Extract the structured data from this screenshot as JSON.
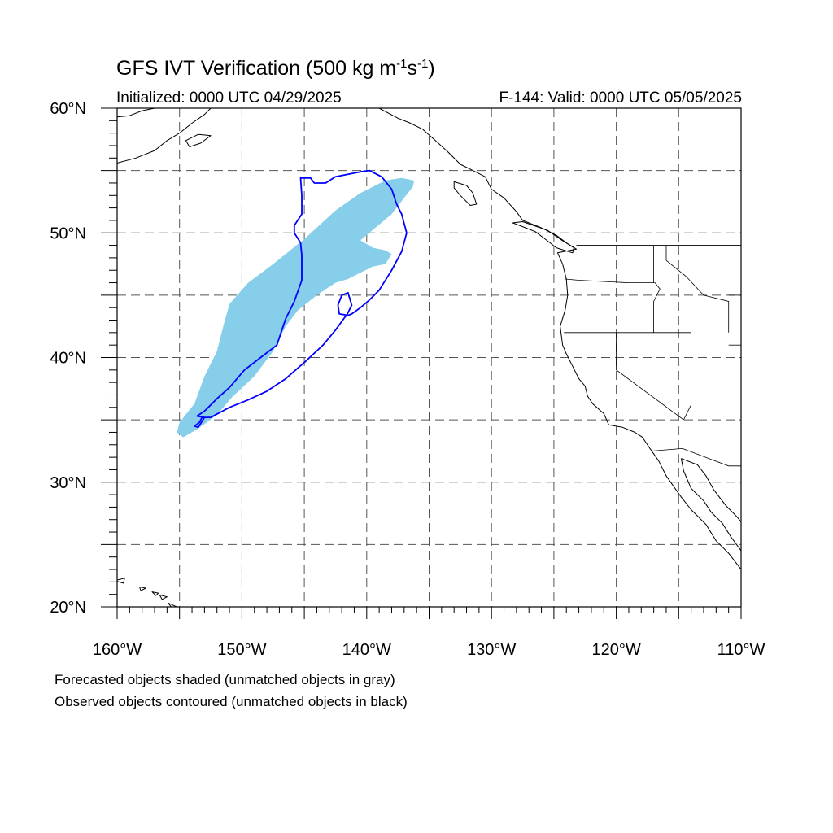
{
  "header": {
    "title_text": "GFS IVT Verification (500 kg m",
    "title_sup1": "-1",
    "title_mid": "s",
    "title_sup2": "-1",
    "title_end": ")",
    "initialized": "Initialized: 0000 UTC 04/29/2025",
    "valid": "F-144: Valid: 0000 UTC 05/05/2025"
  },
  "map": {
    "projection": "cylindrical-equidistant",
    "lon_range": [
      -160,
      -110
    ],
    "lat_range": [
      20,
      60
    ],
    "grid_lines": "dashed every 5 degrees",
    "lon_ticks": [
      {
        "value": -160,
        "label": "160°W"
      },
      {
        "value": -150,
        "label": "150°W"
      },
      {
        "value": -140,
        "label": "140°W"
      },
      {
        "value": -130,
        "label": "130°W"
      },
      {
        "value": -120,
        "label": "120°W"
      },
      {
        "value": -110,
        "label": "110°W"
      }
    ],
    "lat_ticks": [
      {
        "value": 60,
        "label": "60°N"
      },
      {
        "value": 50,
        "label": "50°N"
      },
      {
        "value": 40,
        "label": "40°N"
      },
      {
        "value": 30,
        "label": "30°N"
      },
      {
        "value": 20,
        "label": "20°N"
      }
    ],
    "forecast_color": "#87ceeb",
    "observed_color": "#0000ff",
    "coast_color": "#000000",
    "forecast_object": [
      [
        -154.7,
        33.6
      ],
      [
        -153.5,
        34.3
      ],
      [
        -152.0,
        35.4
      ],
      [
        -150.8,
        36.8
      ],
      [
        -149.0,
        38.5
      ],
      [
        -147.5,
        40.5
      ],
      [
        -146.5,
        42.5
      ],
      [
        -145.5,
        43.8
      ],
      [
        -144.0,
        45.0
      ],
      [
        -142.5,
        46.0
      ],
      [
        -141.5,
        46.3
      ],
      [
        -140.5,
        46.8
      ],
      [
        -139.5,
        47.3
      ],
      [
        -138.5,
        47.5
      ],
      [
        -138.0,
        48.3
      ],
      [
        -138.5,
        48.6
      ],
      [
        -139.5,
        48.8
      ],
      [
        -140.5,
        49.4
      ],
      [
        -139.2,
        50.5
      ],
      [
        -138.0,
        51.5
      ],
      [
        -137.0,
        52.8
      ],
      [
        -136.3,
        53.7
      ],
      [
        -136.2,
        54.2
      ],
      [
        -137.2,
        54.4
      ],
      [
        -138.5,
        54.2
      ],
      [
        -140.5,
        53.2
      ],
      [
        -142.5,
        51.8
      ],
      [
        -145.0,
        49.5
      ],
      [
        -147.5,
        47.5
      ],
      [
        -149.5,
        46.0
      ],
      [
        -151.0,
        44.3
      ],
      [
        -151.5,
        42.5
      ],
      [
        -152.0,
        40.5
      ],
      [
        -153.0,
        38.5
      ],
      [
        -153.8,
        36.3
      ],
      [
        -155.0,
        34.8
      ],
      [
        -155.2,
        34.0
      ]
    ],
    "observed_object": [
      [
        -153.4,
        34.8
      ],
      [
        -153.2,
        35.2
      ],
      [
        -152.5,
        35.2
      ],
      [
        -151.0,
        36.0
      ],
      [
        -149.5,
        36.6
      ],
      [
        -148.0,
        37.3
      ],
      [
        -146.5,
        38.3
      ],
      [
        -145.0,
        39.6
      ],
      [
        -143.5,
        41.0
      ],
      [
        -142.5,
        42.2
      ],
      [
        -141.7,
        43.3
      ],
      [
        -141.2,
        43.5
      ],
      [
        -140.5,
        44.0
      ],
      [
        -139.8,
        44.6
      ],
      [
        -139.0,
        45.4
      ],
      [
        -138.0,
        47.0
      ],
      [
        -137.2,
        48.5
      ],
      [
        -136.8,
        50.0
      ],
      [
        -137.2,
        51.5
      ],
      [
        -137.6,
        52.3
      ],
      [
        -138.0,
        53.5
      ],
      [
        -138.8,
        54.5
      ],
      [
        -139.8,
        55.0
      ],
      [
        -140.5,
        54.9
      ],
      [
        -141.5,
        54.7
      ],
      [
        -142.5,
        54.5
      ],
      [
        -143.3,
        54.0
      ],
      [
        -144.2,
        54.0
      ],
      [
        -144.5,
        54.4
      ],
      [
        -145.3,
        54.4
      ],
      [
        -145.2,
        53.0
      ],
      [
        -145.2,
        51.5
      ],
      [
        -145.8,
        50.6
      ],
      [
        -145.8,
        50.0
      ],
      [
        -145.3,
        49.2
      ],
      [
        -145.2,
        48.2
      ],
      [
        -145.2,
        46.2
      ],
      [
        -145.8,
        44.5
      ],
      [
        -146.5,
        43.1
      ],
      [
        -147.2,
        41.0
      ],
      [
        -148.5,
        40.0
      ],
      [
        -149.8,
        39.0
      ],
      [
        -151.0,
        37.6
      ],
      [
        -152.0,
        36.7
      ],
      [
        -153.0,
        35.7
      ],
      [
        -153.6,
        35.3
      ],
      [
        -153.0,
        35.2
      ],
      [
        -153.5,
        34.4
      ],
      [
        -153.8,
        34.5
      ]
    ],
    "observed_lobe": [
      [
        -142.2,
        43.5
      ],
      [
        -141.6,
        43.4
      ],
      [
        -141.2,
        44.2
      ],
      [
        -141.5,
        45.2
      ],
      [
        -142.0,
        45.0
      ],
      [
        -142.3,
        44.2
      ]
    ],
    "coastline": [
      [
        -139.0,
        60.0
      ],
      [
        -137.5,
        59.2
      ],
      [
        -136.5,
        58.8
      ],
      [
        -135.5,
        58.3
      ],
      [
        -134.5,
        57.4
      ],
      [
        -133.5,
        56.5
      ],
      [
        -132.5,
        55.5
      ],
      [
        -131.5,
        55.0
      ],
      [
        -130.5,
        54.5
      ],
      [
        -130.0,
        53.5
      ],
      [
        -129.0,
        52.8
      ],
      [
        -128.0,
        51.7
      ],
      [
        -127.5,
        51.0
      ],
      [
        -126.0,
        50.4
      ],
      [
        -124.8,
        49.8
      ],
      [
        -124.0,
        49.2
      ],
      [
        -123.2,
        48.7
      ],
      [
        -124.7,
        48.4
      ],
      [
        -124.3,
        47.5
      ],
      [
        -124.0,
        46.3
      ],
      [
        -123.9,
        45.0
      ],
      [
        -124.1,
        43.8
      ],
      [
        -124.5,
        42.5
      ],
      [
        -124.3,
        41.0
      ],
      [
        -124.0,
        40.3
      ],
      [
        -123.5,
        39.3
      ],
      [
        -123.0,
        38.3
      ],
      [
        -122.5,
        37.7
      ],
      [
        -122.3,
        36.9
      ],
      [
        -121.9,
        36.3
      ],
      [
        -121.0,
        35.5
      ],
      [
        -120.6,
        34.6
      ],
      [
        -119.5,
        34.4
      ],
      [
        -118.5,
        34.0
      ],
      [
        -117.9,
        33.6
      ],
      [
        -117.3,
        32.7
      ],
      [
        -116.6,
        31.7
      ],
      [
        -116.0,
        30.5
      ],
      [
        -115.5,
        29.8
      ],
      [
        -114.8,
        28.8
      ],
      [
        -114.0,
        27.8
      ],
      [
        -112.8,
        26.6
      ],
      [
        -112.0,
        25.3
      ],
      [
        -111.0,
        24.3
      ],
      [
        -110.0,
        23.0
      ]
    ],
    "gulf_coast": [
      [
        -114.8,
        31.9
      ],
      [
        -114.6,
        30.9
      ],
      [
        -114.0,
        29.5
      ],
      [
        -113.0,
        28.5
      ],
      [
        -112.4,
        27.6
      ],
      [
        -111.5,
        26.7
      ],
      [
        -110.8,
        25.6
      ],
      [
        -110.0,
        24.5
      ]
    ],
    "mainland_coast": [
      [
        -114.8,
        31.9
      ],
      [
        -113.5,
        31.4
      ],
      [
        -112.8,
        30.5
      ],
      [
        -112.2,
        29.4
      ],
      [
        -111.2,
        28.1
      ],
      [
        -110.3,
        27.2
      ],
      [
        -110.0,
        26.8
      ]
    ],
    "vancouver_island": [
      [
        -128.3,
        50.8
      ],
      [
        -127.5,
        50.5
      ],
      [
        -126.5,
        50.1
      ],
      [
        -125.7,
        49.5
      ],
      [
        -124.8,
        48.8
      ],
      [
        -123.5,
        48.4
      ],
      [
        -123.4,
        48.8
      ],
      [
        -124.5,
        49.5
      ],
      [
        -125.5,
        50.2
      ],
      [
        -127.5,
        50.9
      ]
    ],
    "haida_gwaii": [
      [
        -133.0,
        54.1
      ],
      [
        -132.0,
        53.8
      ],
      [
        -131.5,
        53.2
      ],
      [
        -131.2,
        52.3
      ],
      [
        -131.7,
        52.2
      ],
      [
        -132.5,
        53.0
      ],
      [
        -133.0,
        53.6
      ]
    ],
    "alaska_coast": [
      [
        -160.0,
        59.3
      ],
      [
        -159.0,
        59.4
      ],
      [
        -158.0,
        59.8
      ],
      [
        -157.0,
        60.0
      ]
    ],
    "alaska_peninsula": [
      [
        -160.0,
        55.6
      ],
      [
        -158.5,
        56.0
      ],
      [
        -157.0,
        56.6
      ],
      [
        -156.0,
        57.4
      ],
      [
        -155.0,
        58.0
      ],
      [
        -154.0,
        58.8
      ],
      [
        -153.0,
        59.5
      ],
      [
        -152.5,
        60.0
      ]
    ],
    "kodiak": [
      [
        -154.5,
        57.4
      ],
      [
        -153.5,
        57.9
      ],
      [
        -152.5,
        57.8
      ],
      [
        -153.3,
        57.2
      ],
      [
        -154.2,
        56.9
      ]
    ],
    "hawaii_islands": [
      [
        [
          -160.2,
          22.1
        ],
        [
          -159.4,
          22.3
        ],
        [
          -159.5,
          21.9
        ]
      ],
      [
        [
          -158.2,
          21.6
        ],
        [
          -157.7,
          21.5
        ],
        [
          -158.1,
          21.3
        ]
      ],
      [
        [
          -157.2,
          21.2
        ],
        [
          -156.7,
          21.1
        ],
        [
          -156.9,
          20.9
        ]
      ],
      [
        [
          -156.6,
          20.95
        ],
        [
          -156.0,
          20.8
        ],
        [
          -156.4,
          20.6
        ]
      ],
      [
        [
          -155.9,
          20.3
        ],
        [
          -155.0,
          19.9
        ],
        [
          -155.6,
          19.9
        ]
      ]
    ],
    "us_canada_border": [
      [
        -123.2,
        49.0
      ],
      [
        -110.0,
        49.0
      ]
    ],
    "state_lines": [
      [
        [
          -124.1,
          46.3
        ],
        [
          -123.0,
          46.2
        ],
        [
          -119.0,
          46.0
        ],
        [
          -116.9,
          46.0
        ],
        [
          -116.5,
          45.5
        ],
        [
          -117.0,
          44.5
        ],
        [
          -117.0,
          42.0
        ]
      ],
      [
        [
          -124.2,
          42.0
        ],
        [
          -114.0,
          42.0
        ]
      ],
      [
        [
          -120.0,
          42.0
        ],
        [
          -120.0,
          39.0
        ],
        [
          -114.6,
          35.0
        ]
      ],
      [
        [
          -117.0,
          49.0
        ],
        [
          -117.0,
          46.0
        ]
      ],
      [
        [
          -116.0,
          49.0
        ],
        [
          -116.0,
          47.8
        ],
        [
          -114.4,
          46.5
        ],
        [
          -113.0,
          45.0
        ],
        [
          -111.0,
          44.5
        ],
        [
          -111.0,
          42.0
        ]
      ],
      [
        [
          -114.0,
          42.0
        ],
        [
          -114.0,
          36.2
        ],
        [
          -114.6,
          35.0
        ]
      ],
      [
        [
          -114.0,
          37.0
        ],
        [
          -110.0,
          37.0
        ]
      ],
      [
        [
          -111.0,
          45.0
        ],
        [
          -110.0,
          45.0
        ]
      ],
      [
        [
          -111.0,
          41.0
        ],
        [
          -110.0,
          41.0
        ]
      ],
      [
        [
          -117.1,
          32.5
        ],
        [
          -114.7,
          32.7
        ],
        [
          -111.0,
          31.3
        ],
        [
          -110.0,
          31.3
        ]
      ]
    ]
  },
  "footer": {
    "line1": "Forecasted objects shaded (unmatched objects in gray)",
    "line2": "Observed objects contoured (unmatched objects in black)"
  }
}
